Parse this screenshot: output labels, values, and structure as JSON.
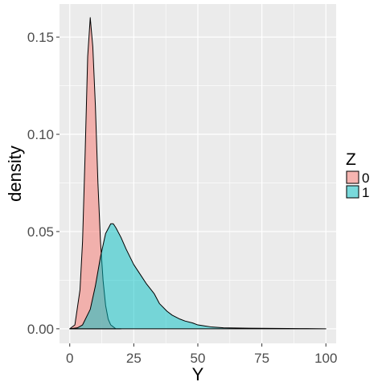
{
  "chart_data": {
    "type": "area",
    "subtype": "density",
    "title": "",
    "xlabel": "Y",
    "ylabel": "density",
    "xlim": [
      -4,
      104
    ],
    "ylim": [
      -0.0075,
      0.167
    ],
    "x_ticks": [
      0,
      25,
      50,
      75,
      100
    ],
    "x_tick_labels": [
      "0",
      "25",
      "50",
      "75",
      "100"
    ],
    "y_ticks": [
      0.0,
      0.05,
      0.1,
      0.15
    ],
    "y_tick_labels": [
      "0.00",
      "0.05",
      "0.10",
      "0.15"
    ],
    "grid": true,
    "legend": {
      "title": "Z",
      "position": "right"
    },
    "series": [
      {
        "name": "0",
        "fill": "#F8766D",
        "x": [
          0,
          2,
          4,
          5,
          6,
          7,
          8,
          9,
          10,
          11,
          12,
          13,
          14,
          15,
          16,
          17,
          18,
          20
        ],
        "y": [
          0.0,
          0.002,
          0.02,
          0.045,
          0.09,
          0.14,
          0.16,
          0.145,
          0.115,
          0.075,
          0.045,
          0.025,
          0.012,
          0.005,
          0.002,
          0.001,
          0.0,
          0.0
        ]
      },
      {
        "name": "1",
        "fill": "#00BFC4",
        "x": [
          0,
          3,
          5,
          8,
          10,
          12,
          14,
          16,
          17,
          18,
          20,
          22,
          25,
          28,
          30,
          33,
          35,
          38,
          40,
          43,
          45,
          48,
          50,
          55,
          60,
          70,
          80,
          90,
          100
        ],
        "y": [
          0.0,
          0.0005,
          0.002,
          0.01,
          0.022,
          0.037,
          0.049,
          0.054,
          0.054,
          0.052,
          0.047,
          0.041,
          0.033,
          0.027,
          0.023,
          0.018,
          0.013,
          0.009,
          0.007,
          0.005,
          0.004,
          0.003,
          0.002,
          0.001,
          0.0005,
          0.0003,
          0.0002,
          0.0001,
          0.0
        ]
      }
    ]
  }
}
